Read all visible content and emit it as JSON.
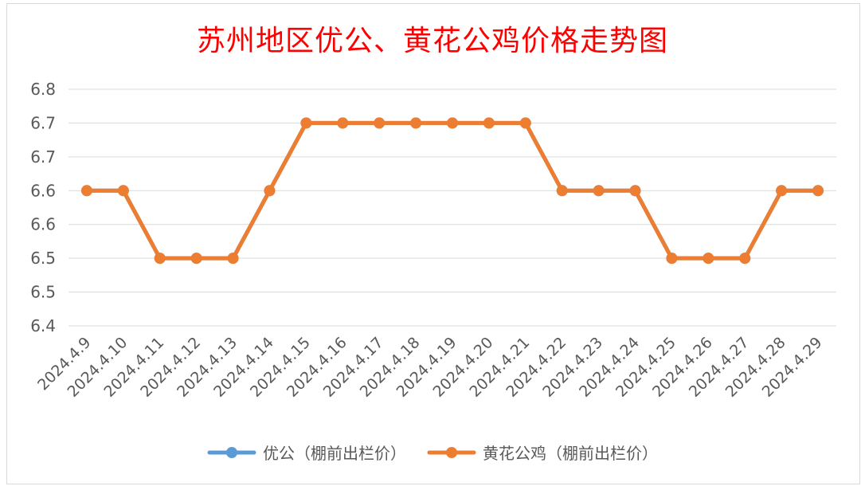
{
  "chart_data": {
    "type": "line",
    "title": "苏州地区优公、黄花公鸡价格走势图",
    "categories": [
      "2024.4.9",
      "2024.4.10",
      "2024.4.11",
      "2024.4.12",
      "2024.4.13",
      "2024.4.14",
      "2024.4.15",
      "2024.4.16",
      "2024.4.17",
      "2024.4.18",
      "2024.4.19",
      "2024.4.20",
      "2024.4.21",
      "2024.4.22",
      "2024.4.23",
      "2024.4.24",
      "2024.4.25",
      "2024.4.26",
      "2024.4.27",
      "2024.4.28",
      "2024.4.29"
    ],
    "y_tick_labels": [
      "6.4",
      "6.5",
      "6.5",
      "6.6",
      "6.6",
      "6.7",
      "6.7",
      "6.8"
    ],
    "ylim": [
      6.4,
      6.75
    ],
    "grid": true,
    "legend_position": "bottom",
    "series": [
      {
        "name": "优公（棚前出栏价）",
        "color": "#5b9bd5",
        "values": [
          6.6,
          6.6,
          6.5,
          6.5,
          6.5,
          6.6,
          6.7,
          6.7,
          6.7,
          6.7,
          6.7,
          6.7,
          6.7,
          6.6,
          6.6,
          6.6,
          6.5,
          6.5,
          6.5,
          6.6,
          6.6
        ]
      },
      {
        "name": "黄花公鸡（棚前出栏价）",
        "color": "#ed7d31",
        "values": [
          6.6,
          6.6,
          6.5,
          6.5,
          6.5,
          6.6,
          6.7,
          6.7,
          6.7,
          6.7,
          6.7,
          6.7,
          6.7,
          6.6,
          6.6,
          6.6,
          6.5,
          6.5,
          6.5,
          6.6,
          6.6
        ]
      }
    ]
  }
}
